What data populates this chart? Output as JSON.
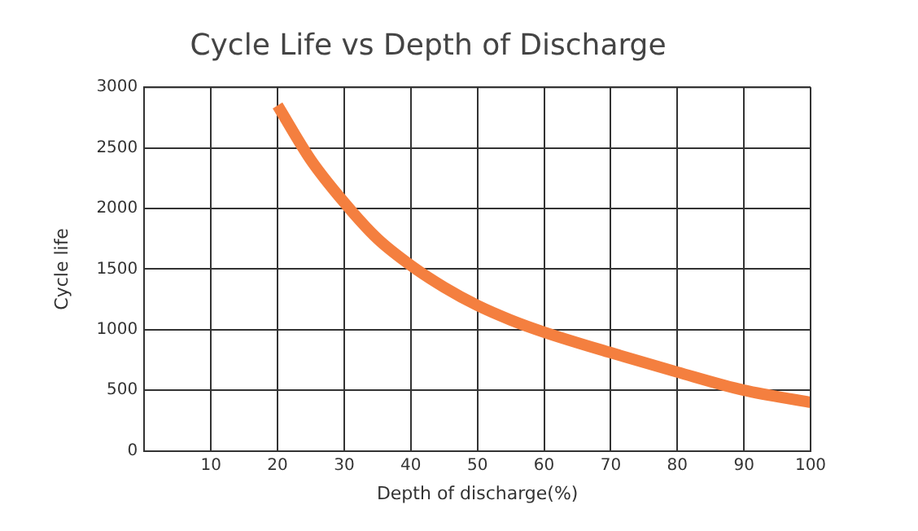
{
  "chart_data": {
    "type": "line",
    "title": "Cycle Life vs Depth of Discharge",
    "xlabel": "Depth of discharge(%)",
    "ylabel": "Cycle life",
    "x": [
      20,
      25,
      30,
      35,
      40,
      45,
      50,
      55,
      60,
      70,
      80,
      90,
      100
    ],
    "series": [
      {
        "color": "#f47f3f",
        "values": [
          2850,
          2400,
          2050,
          1750,
          1530,
          1350,
          1200,
          1080,
          980,
          810,
          650,
          500,
          400
        ]
      }
    ],
    "xlim": [
      0,
      100
    ],
    "xticks": [
      10,
      20,
      30,
      40,
      50,
      60,
      70,
      80,
      90,
      100
    ],
    "ylim": [
      0,
      3000
    ],
    "yticks": [
      0,
      500,
      1000,
      1500,
      2000,
      2500,
      3000
    ],
    "grid": true,
    "legend": false,
    "marker": "none",
    "line_style": "solid"
  }
}
